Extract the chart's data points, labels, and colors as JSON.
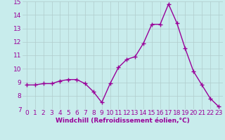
{
  "x": [
    0,
    1,
    2,
    3,
    4,
    5,
    6,
    7,
    8,
    9,
    10,
    11,
    12,
    13,
    14,
    15,
    16,
    17,
    18,
    19,
    20,
    21,
    22,
    23
  ],
  "y": [
    8.8,
    8.8,
    8.9,
    8.9,
    9.1,
    9.2,
    9.2,
    8.9,
    8.3,
    7.5,
    8.9,
    10.1,
    10.7,
    10.9,
    11.9,
    13.3,
    13.3,
    14.8,
    13.4,
    11.5,
    9.8,
    8.8,
    7.8,
    7.2
  ],
  "line_color": "#990099",
  "marker": "+",
  "marker_size": 4,
  "marker_lw": 1.0,
  "line_width": 1.0,
  "bg_color": "#c8ecec",
  "grid_color": "#b0cccc",
  "xlabel": "Windchill (Refroidissement éolien,°C)",
  "xlabel_color": "#990099",
  "tick_color": "#990099",
  "ylim": [
    7,
    15
  ],
  "xlim_min": -0.5,
  "xlim_max": 23.5,
  "yticks": [
    7,
    8,
    9,
    10,
    11,
    12,
    13,
    14,
    15
  ],
  "xticks": [
    0,
    1,
    2,
    3,
    4,
    5,
    6,
    7,
    8,
    9,
    10,
    11,
    12,
    13,
    14,
    15,
    16,
    17,
    18,
    19,
    20,
    21,
    22,
    23
  ],
  "tick_fontsize": 6.5,
  "xlabel_fontsize": 6.5
}
